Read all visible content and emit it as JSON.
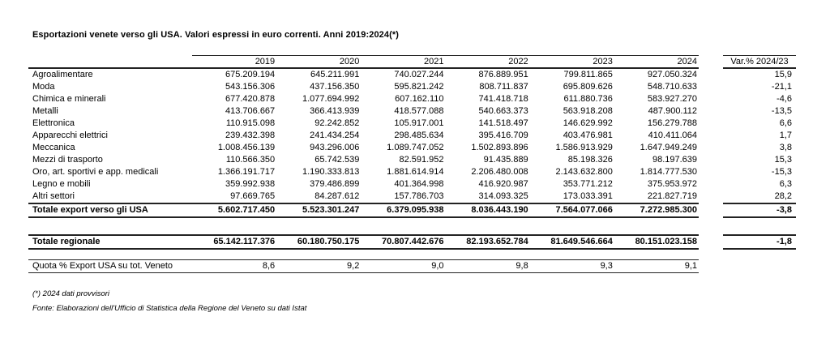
{
  "title": "Esportazioni venete verso gli USA. Valori espressi in euro correnti. Anni 2019:2024(*)",
  "table": {
    "year_headers": [
      "2019",
      "2020",
      "2021",
      "2022",
      "2023",
      "2024"
    ],
    "var_header": "Var.% 2024/23",
    "sectors": [
      {
        "label": "Agroalimentare",
        "values": [
          "675.209.194",
          "645.211.991",
          "740.027.244",
          "876.889.951",
          "799.811.865",
          "927.050.324"
        ],
        "var": "15,9"
      },
      {
        "label": "Moda",
        "values": [
          "543.156.306",
          "437.156.350",
          "595.821.242",
          "808.711.837",
          "695.809.626",
          "548.710.633"
        ],
        "var": "-21,1"
      },
      {
        "label": "Chimica e minerali",
        "values": [
          "677.420.878",
          "1.077.694.992",
          "607.162.110",
          "741.418.718",
          "611.880.736",
          "583.927.270"
        ],
        "var": "-4,6"
      },
      {
        "label": "Metalli",
        "values": [
          "413.706.667",
          "366.413.939",
          "418.577.088",
          "540.663.373",
          "563.918.208",
          "487.900.112"
        ],
        "var": "-13,5"
      },
      {
        "label": "Elettronica",
        "values": [
          "110.915.098",
          "92.242.852",
          "105.917.001",
          "141.518.497",
          "146.629.992",
          "156.279.788"
        ],
        "var": "6,6"
      },
      {
        "label": "Apparecchi elettrici",
        "values": [
          "239.432.398",
          "241.434.254",
          "298.485.634",
          "395.416.709",
          "403.476.981",
          "410.411.064"
        ],
        "var": "1,7"
      },
      {
        "label": "Meccanica",
        "values": [
          "1.008.456.139",
          "943.296.006",
          "1.089.747.052",
          "1.502.893.896",
          "1.586.913.929",
          "1.647.949.249"
        ],
        "var": "3,8"
      },
      {
        "label": "Mezzi di trasporto",
        "values": [
          "110.566.350",
          "65.742.539",
          "82.591.952",
          "91.435.889",
          "85.198.326",
          "98.197.639"
        ],
        "var": "15,3"
      },
      {
        "label": "Oro, art. sportivi e app. medicali",
        "values": [
          "1.366.191.717",
          "1.190.333.813",
          "1.881.614.914",
          "2.206.480.008",
          "2.143.632.800",
          "1.814.777.530"
        ],
        "var": "-15,3"
      },
      {
        "label": "Legno e mobili",
        "values": [
          "359.992.938",
          "379.486.899",
          "401.364.998",
          "416.920.987",
          "353.771.212",
          "375.953.972"
        ],
        "var": "6,3"
      },
      {
        "label": "Altri settori",
        "values": [
          "97.669.765",
          "84.287.612",
          "157.786.703",
          "314.093.325",
          "173.033.391",
          "221.827.719"
        ],
        "var": "28,2"
      }
    ],
    "total": {
      "label": "Totale export verso gli USA",
      "values": [
        "5.602.717.450",
        "5.523.301.247",
        "6.379.095.938",
        "8.036.443.190",
        "7.564.077.066",
        "7.272.985.300"
      ],
      "var": "-3,8"
    },
    "regional": {
      "label": "Totale regionale",
      "values": [
        "65.142.117.376",
        "60.180.750.175",
        "70.807.442.676",
        "82.193.652.784",
        "81.649.546.664",
        "80.151.023.158"
      ],
      "var": "-1,8"
    },
    "quota": {
      "label": "Quota % Export USA su tot. Veneto",
      "values": [
        "8,6",
        "9,2",
        "9,0",
        "9,8",
        "9,3",
        "9,1"
      ],
      "var": ""
    }
  },
  "footnotes": [
    "(*) 2024 dati provvisori",
    "Fonte: Elaborazioni dell'Ufficio di Statistica della Regione del Veneto su dati Istat"
  ]
}
